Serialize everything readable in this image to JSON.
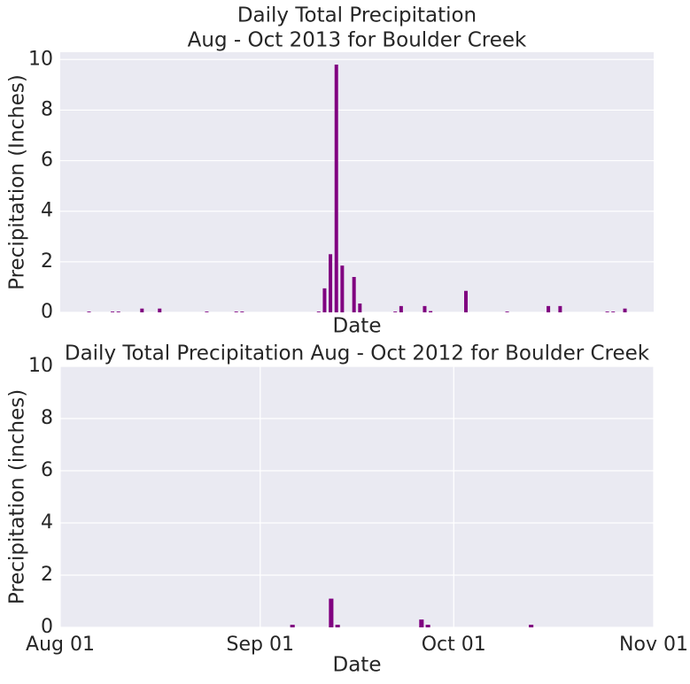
{
  "chart_data": [
    {
      "type": "bar",
      "title": "Daily Total Precipitation",
      "subtitle": "Aug - Oct 2013 for Boulder Creek",
      "xlabel": "Date",
      "ylabel": "Precipitation (Inches)",
      "color": "#800080",
      "grid": true,
      "categories": [
        null,
        null,
        null,
        null,
        null,
        null,
        null,
        null,
        null,
        null,
        null,
        null,
        null,
        null,
        null,
        null,
        null,
        null,
        null,
        null,
        null,
        null,
        null,
        null,
        null,
        null,
        null,
        null,
        null,
        null,
        null,
        null,
        null,
        null,
        null,
        null,
        null,
        null,
        null,
        null,
        null,
        null,
        null,
        null,
        null,
        null,
        null,
        null,
        null,
        null,
        null,
        null,
        null,
        null,
        null,
        null,
        null,
        null,
        null,
        null,
        null,
        null,
        null,
        null,
        null,
        null,
        null,
        null,
        null,
        null,
        null,
        null,
        null,
        null,
        null,
        null,
        null,
        null,
        null,
        null,
        null,
        null,
        null,
        null,
        null,
        null,
        null,
        null,
        null,
        null,
        null,
        null
      ],
      "values": [
        0.03,
        0,
        0,
        0,
        0.03,
        0.03,
        0,
        0,
        0,
        0.15,
        0,
        0,
        0.15,
        0,
        0,
        0,
        0,
        0,
        0,
        0,
        0.03,
        0,
        0,
        0,
        0,
        0.03,
        0.03,
        0,
        0,
        0,
        0,
        0,
        0,
        0,
        0,
        0,
        0,
        0,
        0,
        0.03,
        0.95,
        2.3,
        9.8,
        1.85,
        0,
        1.4,
        0.35,
        0,
        0,
        0,
        0,
        0,
        0.03,
        0.25,
        0,
        0,
        0,
        0.25,
        0.05,
        0,
        0,
        0,
        0,
        0,
        0.85,
        0,
        0,
        0,
        0,
        0,
        0,
        0.03,
        0,
        0,
        0,
        0,
        0,
        0,
        0.25,
        0,
        0.25,
        0,
        0,
        0,
        0,
        0,
        0,
        0,
        0.03,
        0.03,
        0,
        0.15
      ],
      "ylim": [
        0,
        10.29
      ],
      "yticks": [
        0,
        2,
        4,
        6,
        8,
        10
      ]
    },
    {
      "type": "bar",
      "title": "Daily Total Precipitation Aug - Oct 2012 for Boulder Creek",
      "xlabel": "Date",
      "ylabel": "Precipitation (inches)",
      "color": "#800080",
      "grid": true,
      "x": [
        "Sep 06",
        "Sep 12",
        "Sep 13",
        "Sep 26",
        "Sep 27",
        "Oct 13"
      ],
      "values": [
        0.1,
        1.1,
        0.1,
        0.3,
        0.1,
        0.1
      ],
      "xlim": [
        "Aug 01",
        "Nov 01"
      ],
      "xticks": [
        "Aug 01",
        "Sep 01",
        "Oct 01",
        "Nov 01"
      ],
      "ylim": [
        0,
        10
      ],
      "yticks": [
        0,
        2,
        4,
        6,
        8,
        10
      ]
    }
  ]
}
